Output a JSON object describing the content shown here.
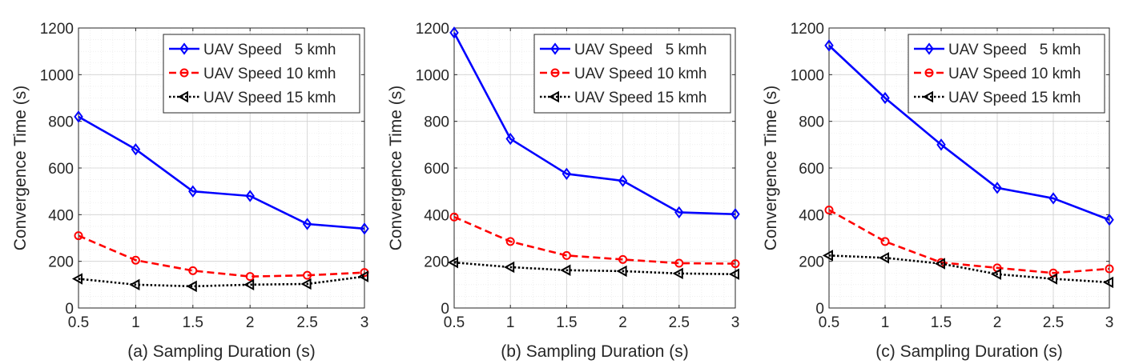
{
  "chart_data": [
    {
      "type": "line",
      "xlabel": "(a) Sampling Duration (s)",
      "ylabel": "Convergence Time (s)",
      "xlim": [
        0.5,
        3
      ],
      "ylim": [
        0,
        1200
      ],
      "x": [
        0.5,
        1,
        1.5,
        2,
        2.5,
        3
      ],
      "xticks": [
        "0.5",
        "1",
        "1.5",
        "2",
        "2.5",
        "3"
      ],
      "yticks": [
        "0",
        "200",
        "400",
        "600",
        "800",
        "1000",
        "1200"
      ],
      "grid": true,
      "legend_position": "top-right",
      "series": [
        {
          "name": "UAV Speed   5 kmh",
          "color": "#0000ff",
          "marker": "diamond",
          "line": "solid",
          "values": [
            820,
            680,
            500,
            480,
            360,
            340
          ]
        },
        {
          "name": "UAV Speed 10 kmh",
          "color": "#ff0000",
          "marker": "circle",
          "line": "dashed",
          "values": [
            310,
            205,
            160,
            135,
            140,
            152
          ]
        },
        {
          "name": "UAV Speed 15 kmh",
          "color": "#000000",
          "marker": "triangle-left",
          "line": "dotted",
          "values": [
            125,
            100,
            93,
            100,
            103,
            135
          ]
        }
      ]
    },
    {
      "type": "line",
      "xlabel": "(b) Sampling Duration (s)",
      "ylabel": "Convergence Time (s)",
      "xlim": [
        0.5,
        3
      ],
      "ylim": [
        0,
        1200
      ],
      "x": [
        0.5,
        1,
        1.5,
        2,
        2.5,
        3
      ],
      "xticks": [
        "0.5",
        "1",
        "1.5",
        "2",
        "2.5",
        "3"
      ],
      "yticks": [
        "0",
        "200",
        "400",
        "600",
        "800",
        "1000",
        "1200"
      ],
      "grid": true,
      "legend_position": "top-right",
      "series": [
        {
          "name": "UAV Speed   5 kmh",
          "color": "#0000ff",
          "marker": "diamond",
          "line": "solid",
          "values": [
            1180,
            725,
            575,
            545,
            410,
            402
          ]
        },
        {
          "name": "UAV Speed 10 kmh",
          "color": "#ff0000",
          "marker": "circle",
          "line": "dashed",
          "values": [
            390,
            285,
            225,
            208,
            192,
            190
          ]
        },
        {
          "name": "UAV Speed 15 kmh",
          "color": "#000000",
          "marker": "triangle-left",
          "line": "dotted",
          "values": [
            195,
            175,
            162,
            158,
            148,
            145
          ]
        }
      ]
    },
    {
      "type": "line",
      "xlabel": "(c) Sampling Duration (s)",
      "ylabel": "Convergence Time (s)",
      "xlim": [
        0.5,
        3
      ],
      "ylim": [
        0,
        1200
      ],
      "x": [
        0.5,
        1,
        1.5,
        2,
        2.5,
        3
      ],
      "xticks": [
        "0.5",
        "1",
        "1.5",
        "2",
        "2.5",
        "3"
      ],
      "yticks": [
        "0",
        "200",
        "400",
        "600",
        "800",
        "1000",
        "1200"
      ],
      "grid": true,
      "legend_position": "top-right",
      "series": [
        {
          "name": "UAV Speed   5 kmh",
          "color": "#0000ff",
          "marker": "diamond",
          "line": "solid",
          "values": [
            1125,
            900,
            700,
            515,
            470,
            378
          ]
        },
        {
          "name": "UAV Speed 10 kmh",
          "color": "#ff0000",
          "marker": "circle",
          "line": "dashed",
          "values": [
            420,
            285,
            195,
            172,
            150,
            168
          ]
        },
        {
          "name": "UAV Speed 15 kmh",
          "color": "#000000",
          "marker": "triangle-left",
          "line": "dotted",
          "values": [
            225,
            215,
            190,
            145,
            125,
            110
          ]
        }
      ]
    }
  ]
}
